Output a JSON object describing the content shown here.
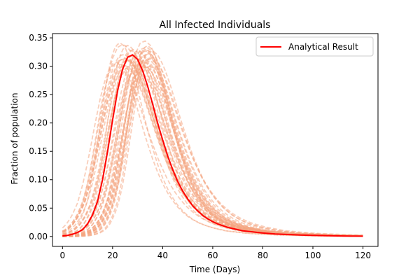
{
  "chart_data": {
    "type": "line",
    "title": "All Infected Individuals",
    "xlabel": "Time (Days)",
    "ylabel": "Fraction of population",
    "xlim": [
      -4,
      126
    ],
    "ylim": [
      -0.0175,
      0.3575
    ],
    "xticks": [
      0,
      20,
      40,
      60,
      80,
      100,
      120
    ],
    "xtick_labels": [
      "0",
      "20",
      "40",
      "60",
      "80",
      "100",
      "120"
    ],
    "yticks": [
      0.0,
      0.05,
      0.1,
      0.15,
      0.2,
      0.25,
      0.3,
      0.35
    ],
    "ytick_labels": [
      "0.00",
      "0.05",
      "0.10",
      "0.15",
      "0.20",
      "0.25",
      "0.30",
      "0.35"
    ],
    "grid": false,
    "legend_position": "top-right",
    "analytical": {
      "name": "Analytical Result",
      "color": "#ff0000",
      "x": [
        0,
        2,
        4,
        6,
        8,
        10,
        12,
        14,
        16,
        18,
        20,
        22,
        24,
        26,
        28,
        30,
        32,
        34,
        36,
        38,
        40,
        42,
        44,
        46,
        48,
        50,
        52,
        54,
        56,
        58,
        60,
        62,
        64,
        66,
        68,
        70,
        72,
        74,
        76,
        78,
        80,
        85,
        90,
        95,
        100,
        105,
        110,
        115,
        120
      ],
      "y": [
        0.001,
        0.002,
        0.004,
        0.007,
        0.012,
        0.022,
        0.038,
        0.062,
        0.1,
        0.15,
        0.205,
        0.257,
        0.295,
        0.316,
        0.32,
        0.312,
        0.292,
        0.265,
        0.233,
        0.2,
        0.17,
        0.142,
        0.118,
        0.097,
        0.08,
        0.066,
        0.054,
        0.045,
        0.037,
        0.031,
        0.026,
        0.022,
        0.019,
        0.016,
        0.014,
        0.012,
        0.01,
        0.009,
        0.008,
        0.007,
        0.006,
        0.0045,
        0.0035,
        0.0025,
        0.002,
        0.0015,
        0.001,
        0.0007,
        0.0005
      ]
    },
    "simulations": {
      "color": "#f4a582",
      "style": "dashed",
      "count": 40,
      "time_shift_days_range": [
        -6,
        8
      ],
      "peak_range": [
        0.29,
        0.345
      ]
    }
  }
}
